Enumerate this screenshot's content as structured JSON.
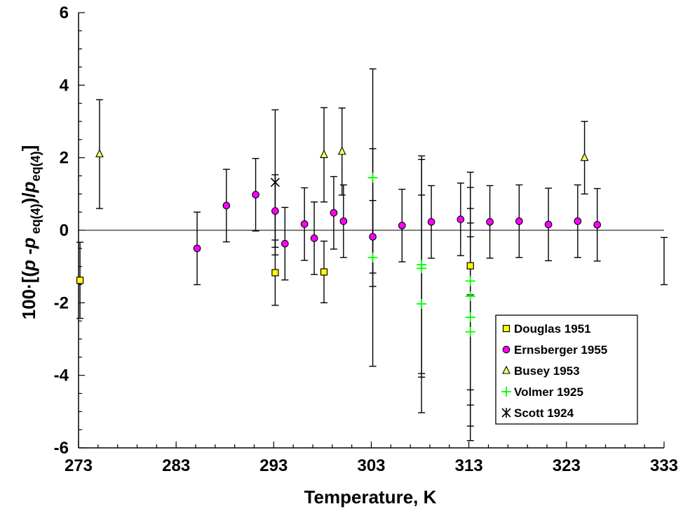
{
  "chart_data": {
    "type": "scatter",
    "xlabel": "Temperature, K",
    "ylabel_parts": {
      "prefix": "100·[(",
      "p1": "p",
      "dash": " -",
      "p2": "p",
      "sub2": " eq(4)",
      "mid": ")/",
      "p3": "p",
      "sub3": "eq(4)",
      "suffix": "]"
    },
    "xlim": [
      273,
      333
    ],
    "ylim": [
      -6,
      6
    ],
    "xticks": [
      273,
      283,
      293,
      303,
      313,
      323,
      333
    ],
    "yticks": [
      -6,
      -4,
      -2,
      0,
      2,
      4,
      6
    ],
    "xtick_labels": [
      "273",
      "283",
      "293",
      "303",
      "313",
      "323",
      "333"
    ],
    "ytick_labels": [
      "-6",
      "-4",
      "-2",
      "0",
      "2",
      "4",
      "6"
    ],
    "grid": false,
    "zero_line": true,
    "legend_position": "bottom-right",
    "series": [
      {
        "name": "Douglas 1951",
        "marker": "square",
        "color": "#ffff00",
        "points": [
          {
            "x": 273.15,
            "y": -1.38,
            "err": 1.05
          },
          {
            "x": 293.15,
            "y": -1.17,
            "err": 0.9
          },
          {
            "x": 298.15,
            "y": -1.15,
            "err": 0.85
          },
          {
            "x": 313.15,
            "y": -0.98,
            "err": 0.8
          }
        ]
      },
      {
        "name": "Ernsberger 1955",
        "marker": "circle",
        "color": "#ff00ff",
        "points": [
          {
            "x": 285.15,
            "y": -0.5,
            "err": 1.0
          },
          {
            "x": 288.15,
            "y": 0.68,
            "err": 1.0
          },
          {
            "x": 291.15,
            "y": 0.98,
            "err": 1.0
          },
          {
            "x": 293.15,
            "y": 0.53,
            "err": 1.0
          },
          {
            "x": 294.15,
            "y": -0.37,
            "err": 1.0
          },
          {
            "x": 296.15,
            "y": 0.17,
            "err": 1.0
          },
          {
            "x": 297.15,
            "y": -0.22,
            "err": 1.0
          },
          {
            "x": 299.15,
            "y": 0.48,
            "err": 1.0
          },
          {
            "x": 300.15,
            "y": 0.25,
            "err": 1.0
          },
          {
            "x": 303.15,
            "y": -0.18,
            "err": 1.0
          },
          {
            "x": 306.15,
            "y": 0.13,
            "err": 1.0
          },
          {
            "x": 309.15,
            "y": 0.23,
            "err": 1.0
          },
          {
            "x": 312.15,
            "y": 0.3,
            "err": 1.0
          },
          {
            "x": 315.15,
            "y": 0.23,
            "err": 1.0
          },
          {
            "x": 318.15,
            "y": 0.25,
            "err": 1.0
          },
          {
            "x": 321.15,
            "y": 0.16,
            "err": 1.0
          },
          {
            "x": 324.15,
            "y": 0.25,
            "err": 1.0
          },
          {
            "x": 326.15,
            "y": 0.15,
            "err": 1.0
          }
        ]
      },
      {
        "name": "Busey 1953",
        "marker": "triangle",
        "color": "#ffff66",
        "points": [
          {
            "x": 275.15,
            "y": 2.1,
            "err": 1.5
          },
          {
            "x": 298.15,
            "y": 2.08,
            "err": 1.3
          },
          {
            "x": 300.0,
            "y": 2.17,
            "err": 1.2
          },
          {
            "x": 324.85,
            "y": 2.0,
            "err": 1.0
          }
        ]
      },
      {
        "name": "Volmer 1925",
        "marker": "plus",
        "color": "#00ff00",
        "points": [
          {
            "x": 303.15,
            "y": 1.45,
            "err": 3.0
          },
          {
            "x": 303.15,
            "y": -0.75,
            "err": 3.0
          },
          {
            "x": 308.15,
            "y": -0.95,
            "err": 3.0
          },
          {
            "x": 308.15,
            "y": -1.05,
            "err": 3.0
          },
          {
            "x": 308.15,
            "y": -2.03,
            "err": 3.0
          },
          {
            "x": 313.15,
            "y": -1.4,
            "err": 3.0
          },
          {
            "x": 313.15,
            "y": -1.82,
            "err": 3.0
          },
          {
            "x": 313.15,
            "y": -2.4,
            "err": 3.0
          },
          {
            "x": 313.15,
            "y": -2.8,
            "err": 3.0
          }
        ]
      },
      {
        "name": "Scott 1924",
        "marker": "star",
        "color": "#000000",
        "points": [
          {
            "x": 293.15,
            "y": 1.32,
            "err": 2.0
          }
        ]
      }
    ],
    "extra_errorbars": [
      {
        "x": 333.0,
        "y": -0.85,
        "err": 0.65
      }
    ]
  }
}
